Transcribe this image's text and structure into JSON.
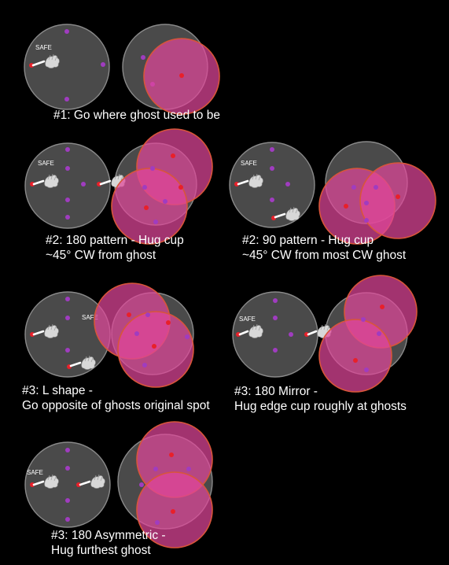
{
  "diagrams": [
    {
      "id": "d1",
      "safe_label": "SAFE",
      "caption_lines": [
        "#1: Go where ghost used to be"
      ]
    },
    {
      "id": "d2a",
      "safe_label": "SAFE",
      "caption_lines": [
        "#2: 180 pattern - Hug cup",
        "~45° CW from ghost"
      ]
    },
    {
      "id": "d2b",
      "safe_label": "SAFE",
      "caption_lines": [
        "#2: 90 pattern - Hug cup",
        "~45° CW from most CW ghost"
      ]
    },
    {
      "id": "d3a",
      "safe_label": "SAFE",
      "caption_lines": [
        "#3: L shape -",
        "Go opposite of ghosts original spot"
      ]
    },
    {
      "id": "d3b",
      "safe_label": "SAFE",
      "caption_lines": [
        "#3: 180 Mirror -",
        "Hug edge cup roughly at ghosts"
      ]
    },
    {
      "id": "d3c",
      "safe_label": "SAFE",
      "caption_lines": [
        "#3: 180 Asymmetric -",
        "Hug furthest ghost"
      ]
    }
  ],
  "colors": {
    "background": "#000000",
    "arena_fill": "#4a4a4a",
    "arena_stroke": "#8a8a8a",
    "dot_purple": "#a03cc0",
    "dot_red": "#e8202a",
    "aoe_fill": "#e0479a",
    "aoe_stroke": "#d8553a",
    "text": "#ffffff"
  },
  "icons": [
    "ghost-icon",
    "hand-icon"
  ]
}
